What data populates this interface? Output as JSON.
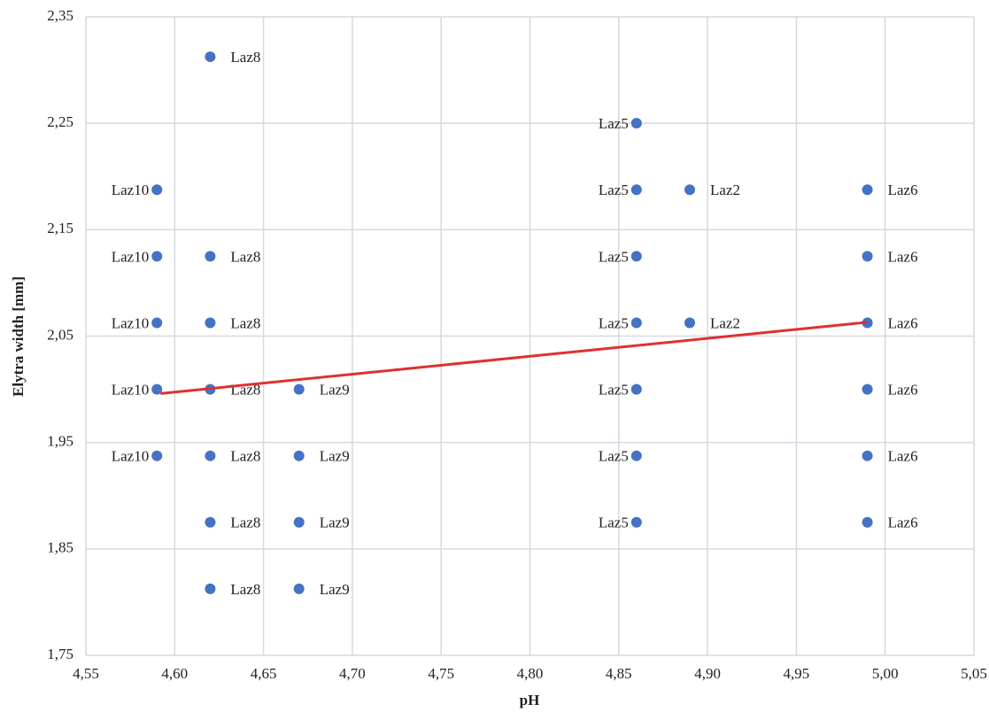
{
  "chart_data": {
    "type": "scatter",
    "x_label": "pH",
    "y_label": "Elytra width [mm]",
    "xlim": [
      4.55,
      5.05
    ],
    "xticks": [
      {
        "value": 4.55,
        "label": "4,55"
      },
      {
        "value": 4.6,
        "label": "4,60"
      },
      {
        "value": 4.65,
        "label": "4,65"
      },
      {
        "value": 4.7,
        "label": "4,70"
      },
      {
        "value": 4.75,
        "label": "4,75"
      },
      {
        "value": 4.8,
        "label": "4,80"
      },
      {
        "value": 4.85,
        "label": "4,85"
      },
      {
        "value": 4.9,
        "label": "4,90"
      },
      {
        "value": 4.95,
        "label": "4,95"
      },
      {
        "value": 5.0,
        "label": "5,00"
      },
      {
        "value": 5.05,
        "label": "5,05"
      }
    ],
    "ylim": [
      1.75,
      2.35
    ],
    "yticks": [
      {
        "value": 1.75,
        "label": "1,75"
      },
      {
        "value": 1.85,
        "label": "1,85"
      },
      {
        "value": 1.95,
        "label": "1,95"
      },
      {
        "value": 2.05,
        "label": "2,05"
      },
      {
        "value": 2.15,
        "label": "2,15"
      },
      {
        "value": 2.25,
        "label": "2,25"
      },
      {
        "value": 2.35,
        "label": "2,35"
      }
    ],
    "grid": true,
    "color": "#4472c4",
    "series": [
      {
        "name": "Laz10",
        "label_position": "left",
        "x": [
          4.59,
          4.59,
          4.59,
          4.59,
          4.59
        ],
        "values": [
          2.1875,
          2.125,
          2.0625,
          2.0,
          1.9375
        ]
      },
      {
        "name": "Laz8",
        "label_position": "right",
        "x": [
          4.62,
          4.62,
          4.62,
          4.62,
          4.62,
          4.62,
          4.62
        ],
        "values": [
          2.3125,
          2.125,
          2.0625,
          2.0,
          1.9375,
          1.875,
          1.8125
        ]
      },
      {
        "name": "Laz9",
        "label_position": "right",
        "x": [
          4.67,
          4.67,
          4.67,
          4.67
        ],
        "values": [
          2.0,
          1.9375,
          1.875,
          1.8125
        ]
      },
      {
        "name": "Laz5",
        "label_position": "left",
        "x": [
          4.86,
          4.86,
          4.86,
          4.86,
          4.86,
          4.86,
          4.86
        ],
        "values": [
          2.25,
          2.1875,
          2.125,
          2.0625,
          2.0,
          1.9375,
          1.875
        ]
      },
      {
        "name": "Laz2",
        "label_position": "right",
        "x": [
          4.89,
          4.89
        ],
        "values": [
          2.1875,
          2.0625
        ]
      },
      {
        "name": "Laz6",
        "label_position": "right",
        "x": [
          4.99,
          4.99,
          4.99,
          4.99,
          4.99,
          4.99
        ],
        "values": [
          2.1875,
          2.125,
          2.0625,
          2.0,
          1.9375,
          1.875
        ]
      }
    ],
    "trendline": {
      "color": "#e03030",
      "x": [
        4.592,
        4.99
      ],
      "values": [
        1.996,
        2.063
      ]
    }
  }
}
